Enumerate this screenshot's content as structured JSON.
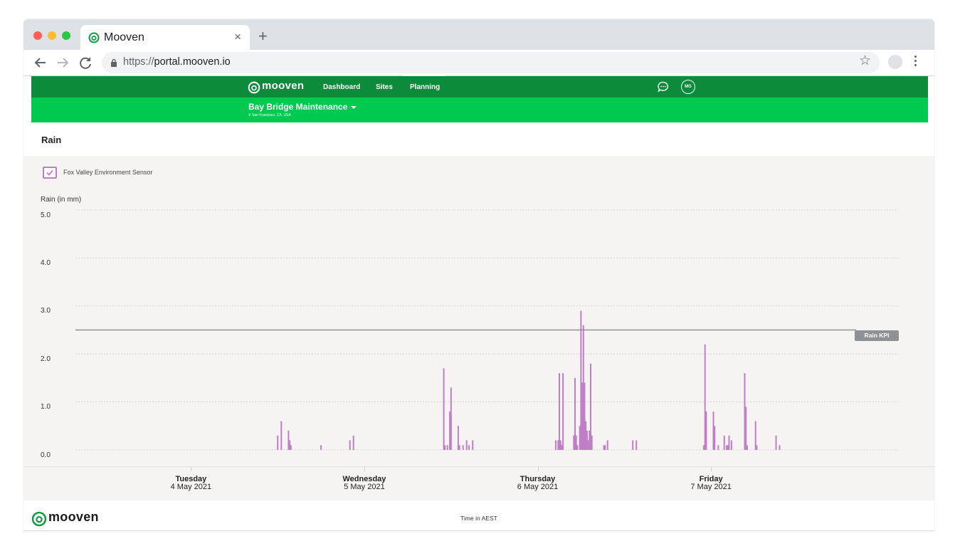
{
  "browser": {
    "tab_title": "Mooven",
    "url_scheme": "https://",
    "url_host": "portal.mooven.io"
  },
  "app": {
    "brand": "mooven",
    "nav": [
      "Dashboard",
      "Sites",
      "Planning"
    ],
    "active_nav": "Planning",
    "user_initials": "MG",
    "site_name": "Bay Bridge Maintenance",
    "site_location": "San Francisco, CA, USA"
  },
  "section": {
    "title": "Rain"
  },
  "chart_data": {
    "type": "bar",
    "ylabel": "Rain (in mm)",
    "ylim": [
      0,
      5
    ],
    "yticks": [
      "5.0",
      "4.0",
      "3.0",
      "2.0",
      "1.0",
      "0.0"
    ],
    "grid": true,
    "legend": "top-left",
    "series": [
      {
        "name": "Fox Valley Environment Sensor",
        "color": "#c07ec7",
        "points": [
          [
            "2021-05-04 12:00",
            0.3
          ],
          [
            "2021-05-04 12:30",
            0.6
          ],
          [
            "2021-05-04 13:30",
            0.4
          ],
          [
            "2021-05-04 13:40",
            0.2
          ],
          [
            "2021-05-04 13:50",
            0.1
          ],
          [
            "2021-05-04 18:00",
            0.1
          ],
          [
            "2021-05-04 22:00",
            0.2
          ],
          [
            "2021-05-04 22:30",
            0.3
          ],
          [
            "2021-05-05 11:00",
            1.7
          ],
          [
            "2021-05-05 11:10",
            0.1
          ],
          [
            "2021-05-05 11:30",
            0.1
          ],
          [
            "2021-05-05 11:50",
            0.8
          ],
          [
            "2021-05-05 12:00",
            1.3
          ],
          [
            "2021-05-05 13:00",
            0.5
          ],
          [
            "2021-05-05 13:10",
            0.1
          ],
          [
            "2021-05-05 13:40",
            0.1
          ],
          [
            "2021-05-05 14:10",
            0.2
          ],
          [
            "2021-05-05 14:30",
            0.1
          ],
          [
            "2021-05-05 15:00",
            0.2
          ],
          [
            "2021-05-06 02:30",
            0.2
          ],
          [
            "2021-05-06 02:50",
            0.2
          ],
          [
            "2021-05-06 03:00",
            1.6
          ],
          [
            "2021-05-06 03:10",
            0.2
          ],
          [
            "2021-05-06 03:20",
            0.1
          ],
          [
            "2021-05-06 03:30",
            1.6
          ],
          [
            "2021-05-06 05:00",
            0.3
          ],
          [
            "2021-05-06 05:10",
            1.5
          ],
          [
            "2021-05-06 05:20",
            0.3
          ],
          [
            "2021-05-06 05:30",
            0.1
          ],
          [
            "2021-05-06 05:50",
            0.5
          ],
          [
            "2021-05-06 06:00",
            2.9
          ],
          [
            "2021-05-06 06:10",
            1.4
          ],
          [
            "2021-05-06 06:20",
            2.6
          ],
          [
            "2021-05-06 06:30",
            1.4
          ],
          [
            "2021-05-06 06:40",
            0.6
          ],
          [
            "2021-05-06 06:50",
            0.4
          ],
          [
            "2021-05-06 07:00",
            0.2
          ],
          [
            "2021-05-06 07:10",
            0.4
          ],
          [
            "2021-05-06 07:20",
            1.8
          ],
          [
            "2021-05-06 07:30",
            0.3
          ],
          [
            "2021-05-06 09:10",
            0.1
          ],
          [
            "2021-05-06 09:20",
            0.1
          ],
          [
            "2021-05-06 09:40",
            0.2
          ],
          [
            "2021-05-06 13:10",
            0.2
          ],
          [
            "2021-05-06 13:40",
            0.2
          ],
          [
            "2021-05-06 23:00",
            0.1
          ],
          [
            "2021-05-06 23:10",
            2.2
          ],
          [
            "2021-05-06 23:20",
            0.8
          ],
          [
            "2021-05-07 00:20",
            0.8
          ],
          [
            "2021-05-07 00:30",
            0.5
          ],
          [
            "2021-05-07 01:00",
            0.1
          ],
          [
            "2021-05-07 01:50",
            0.3
          ],
          [
            "2021-05-07 02:10",
            0.1
          ],
          [
            "2021-05-07 02:20",
            0.1
          ],
          [
            "2021-05-07 02:30",
            0.3
          ],
          [
            "2021-05-07 02:50",
            0.2
          ],
          [
            "2021-05-07 04:40",
            1.6
          ],
          [
            "2021-05-07 04:50",
            0.9
          ],
          [
            "2021-05-07 05:00",
            0.1
          ],
          [
            "2021-05-07 06:10",
            0.6
          ],
          [
            "2021-05-07 06:20",
            0.1
          ],
          [
            "2021-05-07 09:00",
            0.3
          ],
          [
            "2021-05-07 09:30",
            0.1
          ]
        ]
      }
    ],
    "xticks": [
      {
        "day": "Tuesday",
        "date": "4 May 2021",
        "t": "2021-05-04 00:00"
      },
      {
        "day": "Wednesday",
        "date": "5 May 2021",
        "t": "2021-05-05 00:00"
      },
      {
        "day": "Thursday",
        "date": "6 May 2021",
        "t": "2021-05-06 00:00"
      },
      {
        "day": "Friday",
        "date": "7 May 2021",
        "t": "2021-05-07 00:00"
      }
    ],
    "xrange": [
      "2021-05-03 08:00",
      "2021-05-08 02:00"
    ],
    "annotations": [
      {
        "label": "Rain KPI",
        "y": 2.5
      }
    ]
  },
  "footer": {
    "brand": "mooven",
    "time_note": "Time in AEST"
  }
}
